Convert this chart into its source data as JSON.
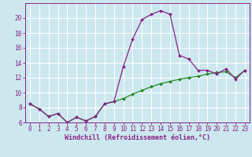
{
  "xlabel": "Windchill (Refroidissement éolien,°C)",
  "background_color": "#cce8ee",
  "grid_color": "#ffffff",
  "line_color": "#882288",
  "line2_color": "#228822",
  "hours": [
    0,
    1,
    2,
    3,
    4,
    5,
    6,
    7,
    8,
    9,
    10,
    11,
    12,
    13,
    14,
    15,
    16,
    17,
    18,
    19,
    20,
    21,
    22,
    23
  ],
  "temp_line": [
    8.5,
    7.8,
    6.8,
    7.2,
    6.0,
    6.7,
    6.2,
    6.8,
    8.5,
    8.8,
    13.5,
    17.2,
    19.8,
    20.5,
    21.0,
    20.5,
    15.0,
    14.5,
    13.0,
    13.0,
    12.5,
    13.2,
    11.8,
    13.0
  ],
  "windchill_line": [
    8.5,
    7.8,
    6.8,
    7.2,
    6.0,
    6.7,
    6.2,
    6.8,
    8.5,
    8.8,
    9.2,
    9.8,
    10.3,
    10.8,
    11.2,
    11.5,
    11.8,
    12.0,
    12.2,
    12.5,
    12.7,
    12.8,
    12.0,
    13.0
  ],
  "ylim_min": 6,
  "ylim_max": 22,
  "xlim_min": -0.5,
  "xlim_max": 23.5,
  "yticks": [
    6,
    8,
    10,
    12,
    14,
    16,
    18,
    20
  ],
  "xticks": [
    0,
    1,
    2,
    3,
    4,
    5,
    6,
    7,
    8,
    9,
    10,
    11,
    12,
    13,
    14,
    15,
    16,
    17,
    18,
    19,
    20,
    21,
    22,
    23
  ],
  "tick_fontsize": 5.5,
  "xlabel_fontsize": 6.0
}
